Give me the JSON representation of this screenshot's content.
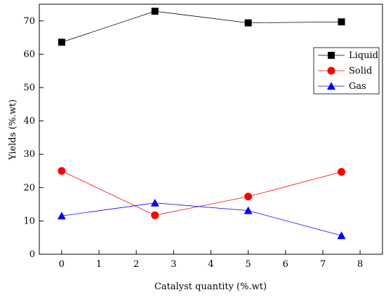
{
  "chart_data": {
    "type": "line",
    "xlabel": "Catalyst quantity (%.wt)",
    "ylabel": "Yields (%.wt)",
    "xlim": [
      -0.6,
      8.6
    ],
    "ylim": [
      0,
      75
    ],
    "xticks": [
      0,
      1,
      2,
      3,
      4,
      5,
      6,
      7,
      8
    ],
    "yticks": [
      0,
      10,
      20,
      30,
      40,
      50,
      60,
      70
    ],
    "grid": false,
    "legend_position": "right",
    "x": [
      0,
      2.5,
      5,
      7.5
    ],
    "series": [
      {
        "name": "Liquid",
        "values": [
          63.6,
          72.9,
          69.4,
          69.7
        ],
        "color": "#000000",
        "marker": "square"
      },
      {
        "name": "Solid",
        "values": [
          25.0,
          11.7,
          17.3,
          24.7
        ],
        "color": "#ff0000",
        "marker": "circle"
      },
      {
        "name": "Gas",
        "values": [
          11.5,
          15.4,
          13.1,
          5.6
        ],
        "color": "#0000ff",
        "marker": "triangle"
      }
    ]
  }
}
